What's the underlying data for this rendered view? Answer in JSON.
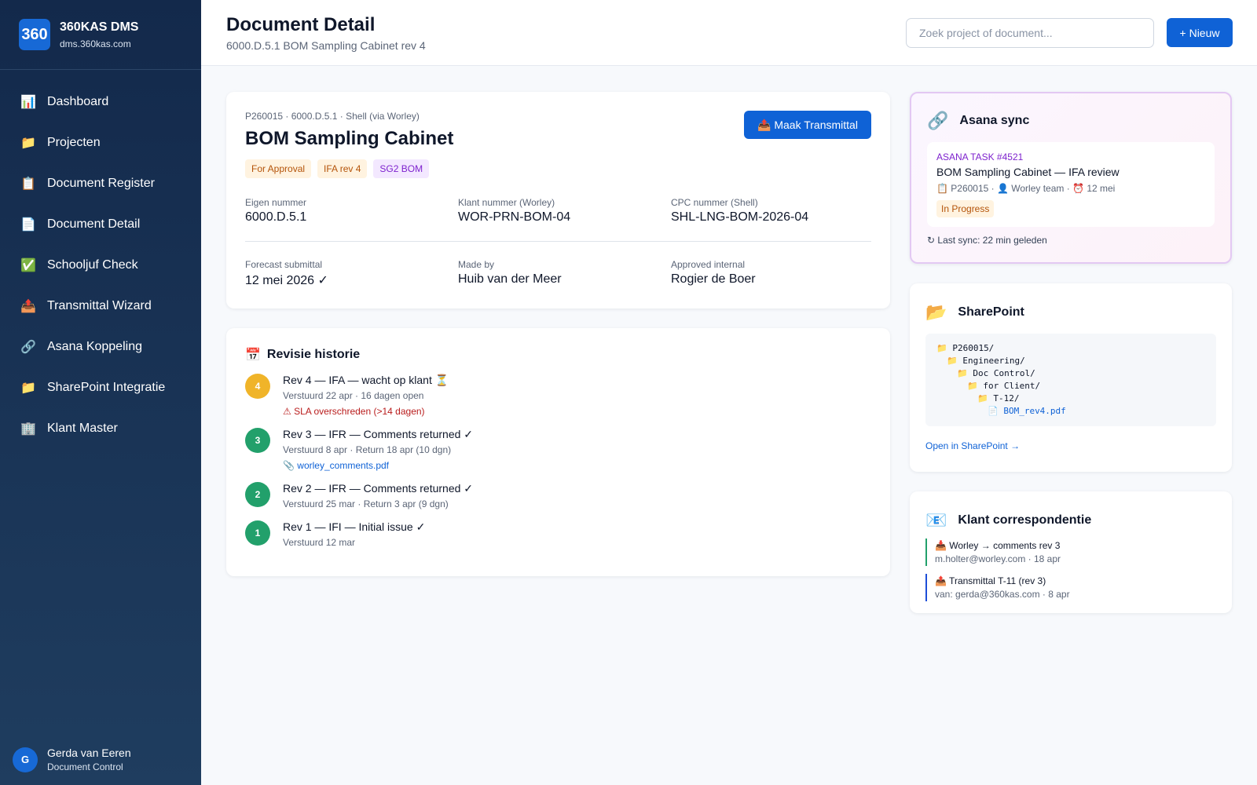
{
  "sidebar": {
    "logo": "360",
    "brand": "360KAS DMS",
    "domain": "dms.360kas.com",
    "nav": [
      {
        "icon": "📊",
        "label": "Dashboard"
      },
      {
        "icon": "📁",
        "label": "Projecten"
      },
      {
        "icon": "📋",
        "label": "Document Register"
      },
      {
        "icon": "📄",
        "label": "Document Detail"
      },
      {
        "icon": "✅",
        "label": "Schooljuf Check"
      },
      {
        "icon": "📤",
        "label": "Transmittal Wizard"
      },
      {
        "icon": "🔗",
        "label": "Asana Koppeling"
      },
      {
        "icon": "📁",
        "label": "SharePoint Integratie"
      },
      {
        "icon": "🏢",
        "label": "Klant Master"
      }
    ],
    "user": {
      "initial": "G",
      "name": "Gerda van Eeren",
      "role": "Document Control"
    }
  },
  "header": {
    "title": "Document Detail",
    "subtitle": "6000.D.5.1 BOM Sampling Cabinet rev 4",
    "search_placeholder": "Zoek project of document...",
    "button": "+ Nieuw"
  },
  "document": {
    "breadcrumb": "P260015 · 6000.D.5.1 · Shell (via Worley)",
    "title": "BOM Sampling Cabinet",
    "action": "📤 Maak Transmittal",
    "tags": [
      "For Approval",
      "IFA rev 4",
      "SG2 BOM"
    ],
    "fields": [
      {
        "label": "Eigen nummer",
        "value": "6000.D.5.1"
      },
      {
        "label": "Klant nummer (Worley)",
        "value": "WOR-PRN-BOM-04"
      },
      {
        "label": "CPC nummer (Shell)",
        "value": "SHL-LNG-BOM-2026-04"
      },
      {
        "label": "Forecast submittal",
        "value": "12 mei 2026 ✓"
      },
      {
        "label": "Made by",
        "value": "Huib van der Meer"
      },
      {
        "label": "Approved internal",
        "value": "Rogier de Boer"
      }
    ]
  },
  "history": {
    "icon": "📅",
    "title": "Revisie historie",
    "revisions": [
      {
        "number": "4",
        "title": "Rev 4 — IFA — wacht op klant ⏳",
        "meta": "Verstuurd 22 apr · 16 dagen open",
        "note": "⚠ SLA overschreden (>14 dagen)"
      },
      {
        "number": "3",
        "title": "Rev 3 — IFR — Comments returned ✓",
        "meta": "Verstuurd 8 apr · Return 18 apr (10 dgn)",
        "attachment_icon": "📎",
        "attachment": "worley_comments.pdf"
      },
      {
        "number": "2",
        "title": "Rev 2 — IFR — Comments returned ✓",
        "meta": "Verstuurd 25 mar · Return 3 apr (9 dgn)"
      },
      {
        "number": "1",
        "title": "Rev 1 — IFI — Initial issue ✓",
        "meta": "Verstuurd 12 mar"
      }
    ]
  },
  "asana": {
    "icon": "🔗",
    "title": "Asana sync",
    "task_id": "ASANA TASK #4521",
    "task_title": "BOM Sampling Cabinet — IFA review",
    "task_meta": "📋 P260015 · 👤 Worley team · ⏰ 12 mei",
    "status": "In Progress",
    "last_sync": "↻ Last sync: 22 min geleden"
  },
  "sharepoint": {
    "icon": "📂",
    "title": "SharePoint",
    "tree": [
      {
        "icon": "📁",
        "name": "P260015/"
      },
      {
        "icon": "📁",
        "name": "Engineering/"
      },
      {
        "icon": "📁",
        "name": "Doc Control/"
      },
      {
        "icon": "📁",
        "name": "for Client/"
      },
      {
        "icon": "📁",
        "name": "T-12/"
      },
      {
        "icon": "📄",
        "name": "BOM_rev4.pdf"
      }
    ],
    "link": "Open in SharePoint →"
  },
  "correspondence": {
    "icon": "📧",
    "title": "Klant correspondentie",
    "items": [
      {
        "subject": "📥 Worley → comments rev 3",
        "meta": "m.holter@worley.com · 18 apr"
      },
      {
        "subject": "📤 Transmittal T-11 (rev 3)",
        "meta": "van: gerda@360kas.com · 8 apr"
      }
    ]
  }
}
